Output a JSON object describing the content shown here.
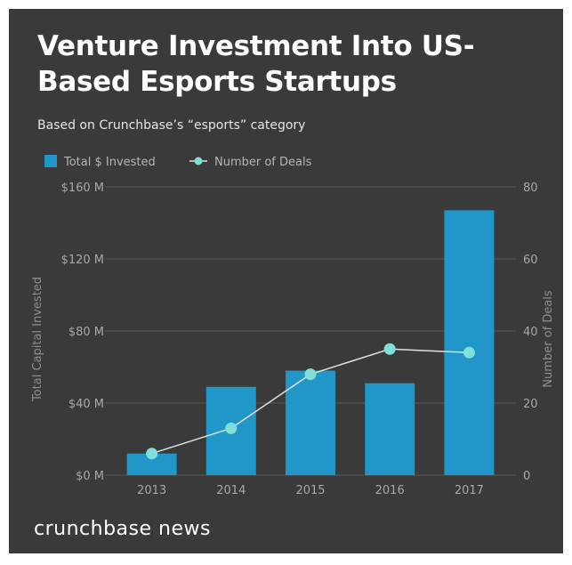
{
  "chart_data": {
    "type": "bar",
    "title": "Venture Investment Into US-Based Esports Startups",
    "subtitle": "Based on Crunchbase’s “esports” category",
    "categories": [
      "2013",
      "2014",
      "2015",
      "2016",
      "2017"
    ],
    "series": [
      {
        "name": "Total $ Invested",
        "type": "bar",
        "axis": "left",
        "values": [
          12,
          49,
          58,
          51,
          147
        ]
      },
      {
        "name": "Number of Deals",
        "type": "line",
        "axis": "right",
        "values": [
          6,
          13,
          28,
          35,
          34
        ]
      }
    ],
    "ylabel": "Total Capital Invested",
    "ylabel_right": "Number of Deals",
    "ylim": [
      0,
      160
    ],
    "ylim_right": [
      0,
      80
    ],
    "yticks": [
      "$0 M",
      "$40 M",
      "$80 M",
      "$120 M",
      "$160 M"
    ],
    "yticks_right": [
      "0",
      "20",
      "40",
      "60",
      "80"
    ],
    "grid": true,
    "legend": "top-left"
  },
  "colors": {
    "background": "#3a3a3a",
    "bar": "#2196c9",
    "line": "#e0e0e0",
    "marker": "#7fe0d8",
    "grid": "#5a5a5a"
  },
  "brand": "crunchbase news"
}
